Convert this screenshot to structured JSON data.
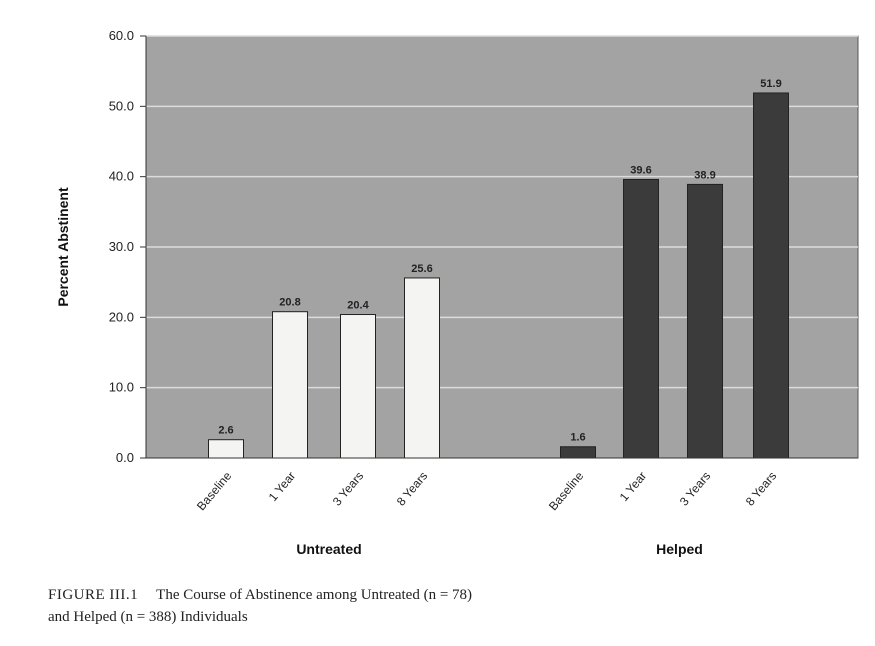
{
  "chart_data": {
    "type": "bar",
    "ylabel": "Percent Abstinent",
    "ylim": [
      0,
      60
    ],
    "yticks": [
      "0.0",
      "10.0",
      "20.0",
      "30.0",
      "40.0",
      "50.0",
      "60.0"
    ],
    "grid": true,
    "groups": [
      {
        "name": "Untreated",
        "color": "#f4f4f2",
        "categories": [
          "Baseline",
          "1 Year",
          "3 Years",
          "8 Years"
        ],
        "values": [
          2.6,
          20.8,
          20.4,
          25.6
        ],
        "labels": [
          "2.6",
          "20.8",
          "20.4",
          "25.6"
        ]
      },
      {
        "name": "Helped",
        "color": "#3b3b3b",
        "categories": [
          "Baseline",
          "1 Year",
          "3 Years",
          "8 Years"
        ],
        "values": [
          1.6,
          39.6,
          38.9,
          51.9
        ],
        "labels": [
          "1.6",
          "39.6",
          "38.9",
          "51.9"
        ]
      }
    ]
  },
  "caption": {
    "figure_label": "FIGURE III.1",
    "text_line1": "The Course of Abstinence among Untreated (n = 78)",
    "text_line2": "and Helped (n = 388) Individuals"
  }
}
